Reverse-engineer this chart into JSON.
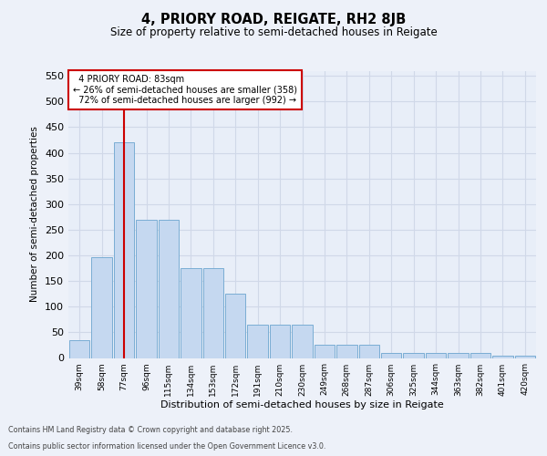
{
  "title1": "4, PRIORY ROAD, REIGATE, RH2 8JB",
  "title2": "Size of property relative to semi-detached houses in Reigate",
  "xlabel": "Distribution of semi-detached houses by size in Reigate",
  "ylabel": "Number of semi-detached properties",
  "categories": [
    "39sqm",
    "58sqm",
    "77sqm",
    "96sqm",
    "115sqm",
    "134sqm",
    "153sqm",
    "172sqm",
    "191sqm",
    "210sqm",
    "230sqm",
    "249sqm",
    "268sqm",
    "287sqm",
    "306sqm",
    "325sqm",
    "344sqm",
    "363sqm",
    "382sqm",
    "401sqm",
    "420sqm"
  ],
  "values": [
    35,
    197,
    420,
    270,
    270,
    175,
    175,
    125,
    65,
    65,
    65,
    25,
    25,
    25,
    10,
    10,
    10,
    10,
    10,
    5,
    5
  ],
  "bar_color": "#c5d8f0",
  "bar_edge_color": "#7aadd4",
  "vline_x": 2.0,
  "vline_color": "#cc0000",
  "box_edge_color": "#cc0000",
  "property_label": "4 PRIORY ROAD: 83sqm",
  "pct_smaller": 26,
  "pct_larger": 72,
  "count_smaller": 358,
  "count_larger": 992,
  "ylim": [
    0,
    560
  ],
  "yticks": [
    0,
    50,
    100,
    150,
    200,
    250,
    300,
    350,
    400,
    450,
    500,
    550
  ],
  "bg_color": "#e8eef8",
  "fig_bg": "#edf1f9",
  "grid_color": "#d0d8e8",
  "footer1": "Contains HM Land Registry data © Crown copyright and database right 2025.",
  "footer2": "Contains public sector information licensed under the Open Government Licence v3.0."
}
